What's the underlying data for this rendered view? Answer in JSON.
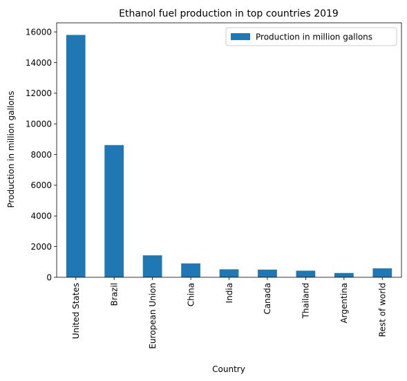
{
  "chart_data": {
    "type": "bar",
    "title": "Ethanol fuel production in top countries 2019",
    "xlabel": "Country",
    "ylabel": "Production in million gallons",
    "categories": [
      "United States",
      "Brazil",
      "European Union",
      "China",
      "India",
      "Canada",
      "Thailand",
      "Argentina",
      "Rest of world"
    ],
    "series": [
      {
        "name": "Production in million gallons",
        "color": "#1f77b4",
        "values": [
          15800,
          8620,
          1430,
          900,
          520,
          500,
          430,
          280,
          580
        ]
      }
    ],
    "ylim": [
      0,
      16590
    ],
    "yticks": [
      0,
      2000,
      4000,
      6000,
      8000,
      10000,
      12000,
      14000,
      16000
    ],
    "ytick_labels": [
      "0",
      "2000",
      "4000",
      "6000",
      "8000",
      "10000",
      "12000",
      "14000",
      "16000"
    ],
    "grid": false,
    "legend": "top-right"
  }
}
